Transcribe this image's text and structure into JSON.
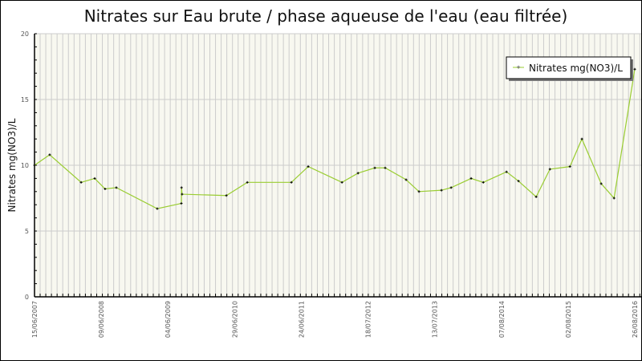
{
  "chart_data": {
    "type": "line",
    "title": "Nitrates sur Eau brute / phase aqueuse de l'eau (eau filtrée)",
    "xlabel": "",
    "ylabel": "Nitrates mg(NO3)/L",
    "xlim": [
      "2007-06-15",
      "2016-08-26"
    ],
    "ylim": [
      0,
      20
    ],
    "x_tick_labels": [
      "15/06/2007",
      "09/06/2008",
      "04/06/2009",
      "29/06/2010",
      "24/06/2011",
      "18/07/2012",
      "13/07/2013",
      "07/08/2014",
      "02/08/2015",
      "26/08/2016"
    ],
    "y_tick_labels": [
      "0",
      "5",
      "10",
      "15",
      "20"
    ],
    "grid": true,
    "legend_position": "top-right",
    "series": [
      {
        "name": "Nitrates mg(NO3)/L",
        "color": "#9acd32",
        "marker_color": "#000000",
        "x": [
          "2007-06-15",
          "2007-09-08",
          "2008-03-02",
          "2008-05-17",
          "2008-07-14",
          "2008-09-15",
          "2009-05-02",
          "2009-09-14",
          "2009-09-15",
          "2009-09-18",
          "2010-05-24",
          "2010-09-18",
          "2011-05-23",
          "2011-08-25",
          "2012-03-01",
          "2012-05-30",
          "2012-09-01",
          "2012-10-29",
          "2013-02-23",
          "2013-05-06",
          "2013-09-09",
          "2013-11-02",
          "2014-02-22",
          "2014-05-01",
          "2014-09-08",
          "2014-11-14",
          "2015-02-21",
          "2015-05-09",
          "2015-08-29",
          "2015-11-04",
          "2016-02-20",
          "2016-05-02",
          "2016-08-26"
        ],
        "y": [
          10.0,
          10.8,
          8.7,
          9.0,
          8.2,
          8.3,
          6.7,
          7.1,
          8.3,
          7.8,
          7.7,
          8.7,
          8.7,
          9.9,
          8.7,
          9.4,
          9.8,
          9.8,
          8.9,
          8.0,
          8.1,
          8.3,
          9.0,
          8.7,
          9.5,
          8.8,
          7.6,
          9.7,
          9.9,
          12.0,
          8.6,
          7.5,
          17.3
        ]
      }
    ]
  },
  "colors": {
    "plot_background": "#f8f8f0",
    "grid": "#cccccc"
  }
}
